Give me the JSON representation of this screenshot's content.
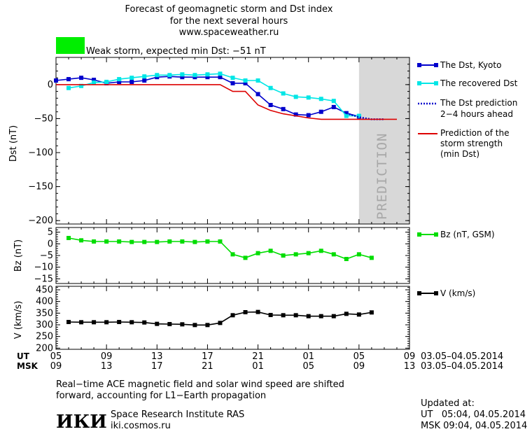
{
  "title_lines": [
    "Forecast of geomagnetic storm and Dst index",
    "for the next several hours",
    "www.spaceweather.ru"
  ],
  "storm_indicator": {
    "color": "#00ee00",
    "text": "Weak storm, expected min Dst: −51 nT"
  },
  "prediction_band_label": "PREDICTION",
  "x_axis": {
    "ut_label": "UT",
    "msk_label": "MSK",
    "ut_ticks": [
      "05",
      "09",
      "13",
      "17",
      "21",
      "01",
      "05",
      "09"
    ],
    "msk_ticks": [
      "09",
      "13",
      "17",
      "21",
      "01",
      "05",
      "09",
      "13"
    ],
    "date_range_ut": "03.05–04.05.2014",
    "date_range_msk": "03.05–04.05.2014"
  },
  "footer": {
    "note_line1": "Real−time ACE magnetic field and solar wind speed are shifted",
    "note_line2": "forward, accounting for L1−Earth propagation",
    "logo_text": "ИКИ",
    "institute": "Space Research Institute RAS",
    "site": "iki.cosmos.ru",
    "updated_label": "Updated at:",
    "updated_ut": "UT   05:04, 04.05.2014",
    "updated_msk": "MSK 09:04, 04.05.2014"
  },
  "colors": {
    "kyoto": "#0000cc",
    "recovered": "#00e6e6",
    "strength": "#dd0000",
    "bz": "#00dd00",
    "v": "#000000",
    "prediction_band": "#d8d8d8"
  },
  "chart_data": [
    {
      "type": "line",
      "name": "dst",
      "ylabel": "Dst (nT)",
      "ylim": [
        -205,
        40
      ],
      "yticks": [
        0,
        -50,
        -100,
        -150,
        -200
      ],
      "xlim": [
        0,
        28
      ],
      "prediction_from": 24,
      "series": [
        {
          "name": "The Dst, Kyoto",
          "color": "#0000cc",
          "marker": true,
          "x": [
            0,
            1,
            2,
            3,
            4,
            5,
            6,
            7,
            8,
            9,
            10,
            11,
            12,
            13,
            14,
            15,
            16,
            17,
            18,
            19,
            20,
            21,
            22,
            23,
            24
          ],
          "y": [
            6,
            8,
            10,
            7,
            2,
            4,
            4,
            6,
            11,
            12,
            11,
            11,
            11,
            11,
            2,
            2,
            -14,
            -30,
            -36,
            -44,
            -45,
            -40,
            -33,
            -42,
            -47
          ]
        },
        {
          "name": "The recovered Dst",
          "color": "#00e6e6",
          "marker": true,
          "x": [
            1,
            2,
            3,
            4,
            5,
            6,
            7,
            8,
            9,
            10,
            11,
            12,
            13,
            14,
            15,
            16,
            17,
            18,
            19,
            20,
            21,
            22,
            23,
            24
          ],
          "y": [
            -5,
            -2,
            3,
            4,
            8,
            10,
            12,
            14,
            14,
            15,
            14,
            15,
            16,
            10,
            6,
            6,
            -5,
            -13,
            -18,
            -19,
            -21,
            -24,
            -46,
            -46
          ]
        },
        {
          "name": "The Dst prediction 2−4 hours ahead",
          "color": "#0000cc",
          "dotted": true,
          "x": [
            23,
            24,
            25,
            26
          ],
          "y": [
            -42,
            -48,
            -51,
            -51
          ]
        },
        {
          "name": "Prediction of the storm strength (min Dst)",
          "color": "#dd0000",
          "x": [
            0,
            13,
            14,
            15,
            16,
            17,
            18,
            19,
            20,
            21,
            22,
            27
          ],
          "y": [
            0,
            0,
            -10,
            -10,
            -30,
            -38,
            -43,
            -46,
            -49,
            -51,
            -51,
            -51
          ]
        }
      ]
    },
    {
      "type": "line",
      "name": "bz",
      "ylabel": "Bz (nT)",
      "ylim": [
        -17,
        7
      ],
      "yticks": [
        5,
        0,
        -5,
        -10,
        -15
      ],
      "xlim": [
        0,
        28
      ],
      "series": [
        {
          "name": "Bz (nT, GSM)",
          "color": "#00dd00",
          "marker": true,
          "x": [
            1,
            2,
            3,
            4,
            5,
            6,
            7,
            8,
            9,
            10,
            11,
            12,
            13,
            14,
            15,
            16,
            17,
            18,
            19,
            20,
            21,
            22,
            23,
            24,
            25
          ],
          "y": [
            2.5,
            1.5,
            1,
            1,
            1,
            0.8,
            0.8,
            0.8,
            1,
            1,
            0.8,
            1,
            1,
            -4.5,
            -6,
            -4,
            -3,
            -5,
            -4.5,
            -4,
            -3,
            -4.5,
            -6.5,
            -4.5,
            -6
          ]
        }
      ]
    },
    {
      "type": "line",
      "name": "v",
      "ylabel": "V (km/s)",
      "ylim": [
        195,
        465
      ],
      "yticks": [
        450,
        400,
        350,
        300,
        250,
        200
      ],
      "xlim": [
        0,
        28
      ],
      "series": [
        {
          "name": "V (km/s)",
          "color": "#000000",
          "marker": true,
          "x": [
            1,
            2,
            3,
            4,
            5,
            6,
            7,
            8,
            9,
            10,
            11,
            12,
            13,
            14,
            15,
            16,
            17,
            18,
            19,
            20,
            21,
            22,
            23,
            24,
            25
          ],
          "y": [
            312,
            311,
            311,
            311,
            312,
            311,
            310,
            304,
            303,
            302,
            299,
            299,
            308,
            341,
            354,
            355,
            342,
            341,
            341,
            337,
            337,
            337,
            347,
            344,
            353
          ]
        }
      ]
    }
  ],
  "legend": {
    "kyoto": "The Dst, Kyoto",
    "recovered": "The recovered Dst",
    "prediction_line1": "The Dst prediction",
    "prediction_line2": "2−4 hours ahead",
    "strength_line1": "Prediction of the",
    "strength_line2": "storm strength",
    "strength_line3": "(min Dst)",
    "bz": "Bz (nT, GSM)",
    "v": "V (km/s)"
  }
}
